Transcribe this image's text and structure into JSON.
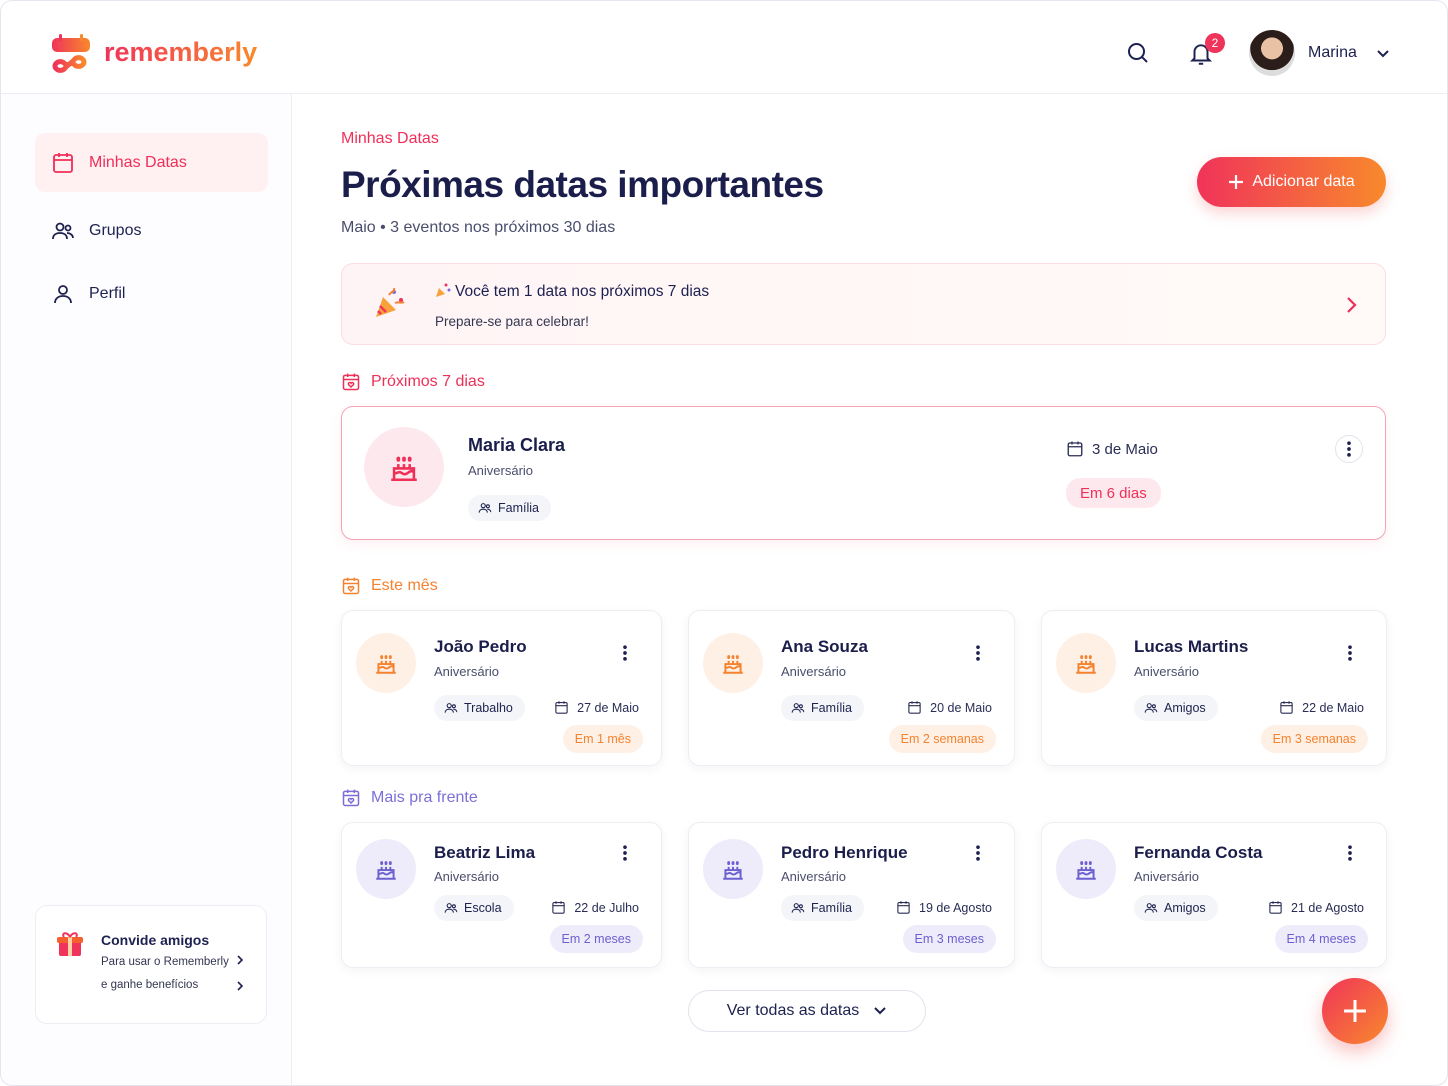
{
  "header": {
    "brand": "rememberly",
    "notification_count": 2,
    "user_name": "Marina"
  },
  "sidebar": {
    "nav": [
      "Minhas Datas",
      "Grupos",
      "Perfil"
    ],
    "invite": {
      "title": "Convide amigos",
      "lines": [
        "Para usar o Rememberly",
        "e ganhe benefícios"
      ]
    }
  },
  "main": {
    "breadcrumb": "Minhas Datas",
    "title": "Próximas datas importantes",
    "subtitle": "Maio • 3 eventos nos próximos 30 dias",
    "add_button": "Adicionar data",
    "banner": {
      "title": "Você tem 1 data nos próximos 7 dias",
      "subtitle": "Prepare-se para celebrar!"
    },
    "sections": [
      {
        "title": "Próximos 7 dias",
        "events": [
          {
            "name": "Maria Clara",
            "type": "Aniversário",
            "tag": "Família",
            "date": "3 de Maio",
            "countdown": "Em 6 dias"
          }
        ]
      },
      {
        "title": "Este mês",
        "events": [
          {
            "name": "João Pedro",
            "type": "Aniversário",
            "tag": "Trabalho",
            "date": "27 de Maio",
            "countdown": "Em 1 mês"
          },
          {
            "name": "Ana Souza",
            "type": "Aniversário",
            "tag": "Família",
            "date": "20 de Maio",
            "countdown": "Em 2 semanas"
          },
          {
            "name": "Lucas Martins",
            "type": "Aniversário",
            "tag": "Amigos",
            "date": "22 de Maio",
            "countdown": "Em 3 semanas"
          }
        ]
      },
      {
        "title": "Mais pra frente",
        "events": [
          {
            "name": "Beatriz Lima",
            "type": "Aniversário",
            "tag": "Escola",
            "date": "22 de Julho",
            "countdown": "Em 2 meses"
          },
          {
            "name": "Pedro Henrique",
            "type": "Aniversário",
            "tag": "Família",
            "date": "19 de Agosto",
            "countdown": "Em 3 meses"
          },
          {
            "name": "Fernanda Costa",
            "type": "Aniversário",
            "tag": "Amigos",
            "date": "21 de Agosto",
            "countdown": "Em 4 meses"
          }
        ]
      }
    ],
    "more_button": "Ver todas as datas"
  }
}
